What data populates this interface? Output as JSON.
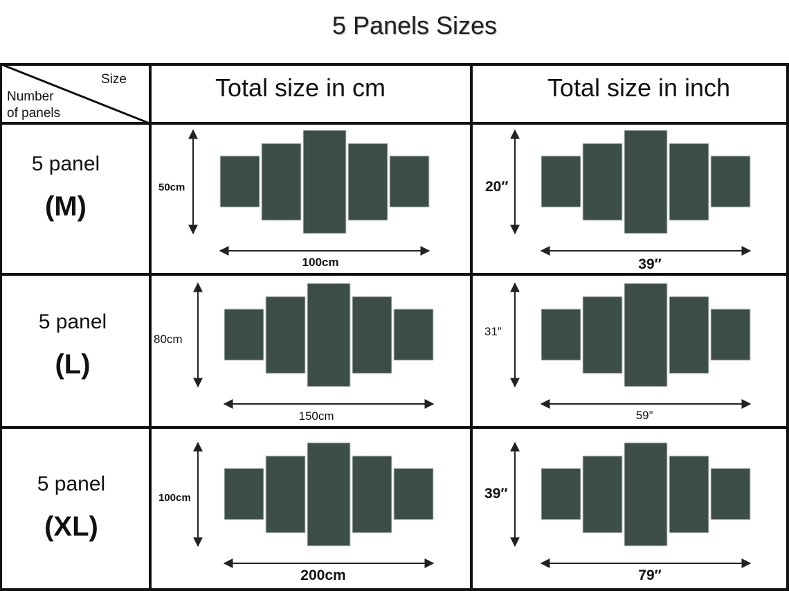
{
  "title": "5 Panels Sizes",
  "header": {
    "size_label": "Size",
    "number_label_line1": "Number",
    "number_label_line2": "of panels",
    "col_cm": "Total size in cm",
    "col_inch": "Total size in inch"
  },
  "rows": [
    {
      "panel": "5 panel",
      "size": "(M)",
      "cm": {
        "height": "50cm",
        "width": "100cm"
      },
      "inch": {
        "height": "20″",
        "width": "39″"
      }
    },
    {
      "panel": "5 panel",
      "size": "(L)",
      "cm": {
        "height": "80cm",
        "width": "150cm"
      },
      "inch": {
        "height": "31”",
        "width": "59”"
      }
    },
    {
      "panel": "5 panel",
      "size": "(XL)",
      "cm": {
        "height": "100cm",
        "width": "200cm"
      },
      "inch": {
        "height": "39″",
        "width": "79″"
      }
    }
  ],
  "colors": {
    "panel": "#3d4d4a",
    "line": "#111111"
  }
}
